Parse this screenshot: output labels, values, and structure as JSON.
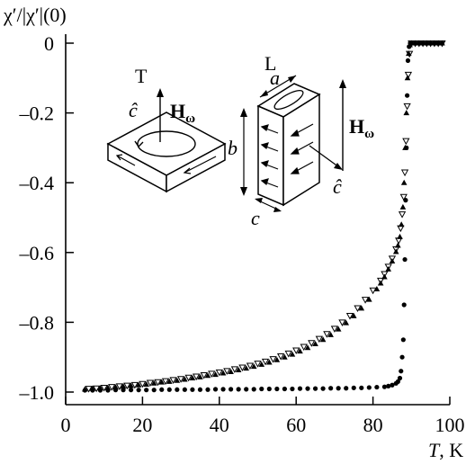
{
  "chart_data": {
    "type": "scatter",
    "title": "",
    "ylabel": "χ′/|χ′|(0)",
    "xlabel_main": "T",
    "xlabel_unit": ", K",
    "xlim": [
      0,
      100
    ],
    "ylim": [
      -1.05,
      0.03
    ],
    "xticks": [
      0,
      20,
      40,
      60,
      80,
      100
    ],
    "yticks": [
      0,
      -0.2,
      -0.4,
      -0.6,
      -0.8,
      -1.0
    ],
    "ytick_labels": [
      "0",
      "–0.2",
      "–0.4",
      "–0.6",
      "–0.8",
      "–1.0"
    ],
    "grid": false,
    "series": [
      {
        "marker": "circle",
        "color": "#000000",
        "x": [
          5,
          7,
          9,
          11,
          13,
          15,
          17,
          19,
          21,
          23,
          25,
          27,
          29,
          31,
          33,
          35,
          37,
          39,
          41,
          43,
          45,
          47,
          49,
          51,
          53,
          55,
          57,
          59,
          61,
          63,
          65,
          67,
          69,
          71,
          73,
          75,
          77,
          79,
          81,
          83,
          84,
          85,
          86,
          86.5,
          87,
          87.3,
          87.6,
          87.9,
          88.1,
          88.3,
          88.5,
          88.7,
          88.9,
          89.1,
          89.4,
          89.7,
          90,
          91,
          92,
          93,
          94,
          95,
          96,
          97,
          98
        ],
        "y": [
          -0.995,
          -0.995,
          -0.995,
          -0.995,
          -0.994,
          -0.994,
          -0.994,
          -0.994,
          -0.994,
          -0.994,
          -0.993,
          -0.993,
          -0.993,
          -0.993,
          -0.993,
          -0.993,
          -0.993,
          -0.992,
          -0.992,
          -0.992,
          -0.992,
          -0.992,
          -0.992,
          -0.991,
          -0.991,
          -0.991,
          -0.991,
          -0.991,
          -0.99,
          -0.99,
          -0.99,
          -0.99,
          -0.989,
          -0.989,
          -0.989,
          -0.988,
          -0.988,
          -0.987,
          -0.986,
          -0.985,
          -0.983,
          -0.98,
          -0.975,
          -0.97,
          -0.96,
          -0.94,
          -0.9,
          -0.85,
          -0.75,
          -0.62,
          -0.45,
          -0.3,
          -0.15,
          -0.05,
          -0.01,
          0.0,
          0.0,
          0.0,
          0.0,
          0.0,
          0.0,
          0.0,
          0.0,
          0.0,
          0.0
        ]
      },
      {
        "marker": "triangle-up",
        "color": "#000000",
        "x": [
          5,
          7,
          9,
          11,
          13,
          15,
          17,
          19,
          21,
          23,
          25,
          27,
          29,
          31,
          33,
          35,
          37,
          39,
          41,
          43,
          45,
          47,
          49,
          51,
          53,
          55,
          57,
          59,
          61,
          63,
          65,
          67,
          69,
          71,
          73,
          75,
          77,
          79,
          81,
          82,
          83,
          84,
          85,
          86,
          86.5,
          87,
          87.4,
          87.8,
          88.1,
          88.4,
          88.7,
          89,
          89.3,
          89.6,
          90,
          91,
          92,
          93,
          94,
          95,
          96,
          97,
          98
        ],
        "y": [
          -0.992,
          -0.99,
          -0.989,
          -0.988,
          -0.986,
          -0.984,
          -0.982,
          -0.98,
          -0.978,
          -0.975,
          -0.972,
          -0.97,
          -0.967,
          -0.964,
          -0.96,
          -0.957,
          -0.953,
          -0.95,
          -0.946,
          -0.942,
          -0.937,
          -0.932,
          -0.927,
          -0.921,
          -0.915,
          -0.908,
          -0.9,
          -0.892,
          -0.883,
          -0.873,
          -0.862,
          -0.85,
          -0.836,
          -0.82,
          -0.802,
          -0.782,
          -0.76,
          -0.735,
          -0.705,
          -0.688,
          -0.67,
          -0.648,
          -0.625,
          -0.598,
          -0.58,
          -0.555,
          -0.52,
          -0.47,
          -0.4,
          -0.3,
          -0.2,
          -0.1,
          -0.03,
          -0.005,
          0.0,
          0.0,
          0.0,
          0.0,
          0.0,
          0.0,
          0.0,
          0.0,
          0.0
        ]
      },
      {
        "marker": "triangle-down",
        "color": "#000000",
        "x": [
          6,
          8,
          10,
          12,
          14,
          16,
          18,
          20,
          22,
          24,
          26,
          28,
          30,
          32,
          34,
          36,
          38,
          40,
          42,
          44,
          46,
          48,
          50,
          52,
          54,
          56,
          58,
          60,
          62,
          64,
          66,
          68,
          70,
          72,
          74,
          76,
          78,
          80,
          82,
          83,
          84,
          85,
          86,
          86.7,
          87.2,
          87.6,
          88,
          88.3,
          88.6,
          88.9,
          89.2,
          89.5,
          90,
          91,
          92,
          93,
          94,
          95,
          96,
          97,
          98
        ],
        "y": [
          -0.99,
          -0.989,
          -0.987,
          -0.985,
          -0.983,
          -0.981,
          -0.979,
          -0.976,
          -0.973,
          -0.971,
          -0.968,
          -0.965,
          -0.962,
          -0.958,
          -0.955,
          -0.951,
          -0.947,
          -0.943,
          -0.939,
          -0.934,
          -0.929,
          -0.924,
          -0.918,
          -0.912,
          -0.905,
          -0.897,
          -0.889,
          -0.88,
          -0.87,
          -0.859,
          -0.847,
          -0.833,
          -0.818,
          -0.8,
          -0.781,
          -0.759,
          -0.735,
          -0.708,
          -0.68,
          -0.661,
          -0.64,
          -0.617,
          -0.59,
          -0.565,
          -0.53,
          -0.49,
          -0.44,
          -0.37,
          -0.28,
          -0.18,
          -0.09,
          -0.03,
          0.0,
          0.0,
          0.0,
          0.0,
          0.0,
          0.0,
          0.0,
          0.0,
          0.0
        ]
      }
    ]
  },
  "inset": {
    "label_T": "T",
    "label_L": "L",
    "label_c_hat": "ĉ",
    "label_H": "H",
    "label_omega": "ω",
    "label_a": "a",
    "label_b": "b",
    "label_c": "c"
  }
}
